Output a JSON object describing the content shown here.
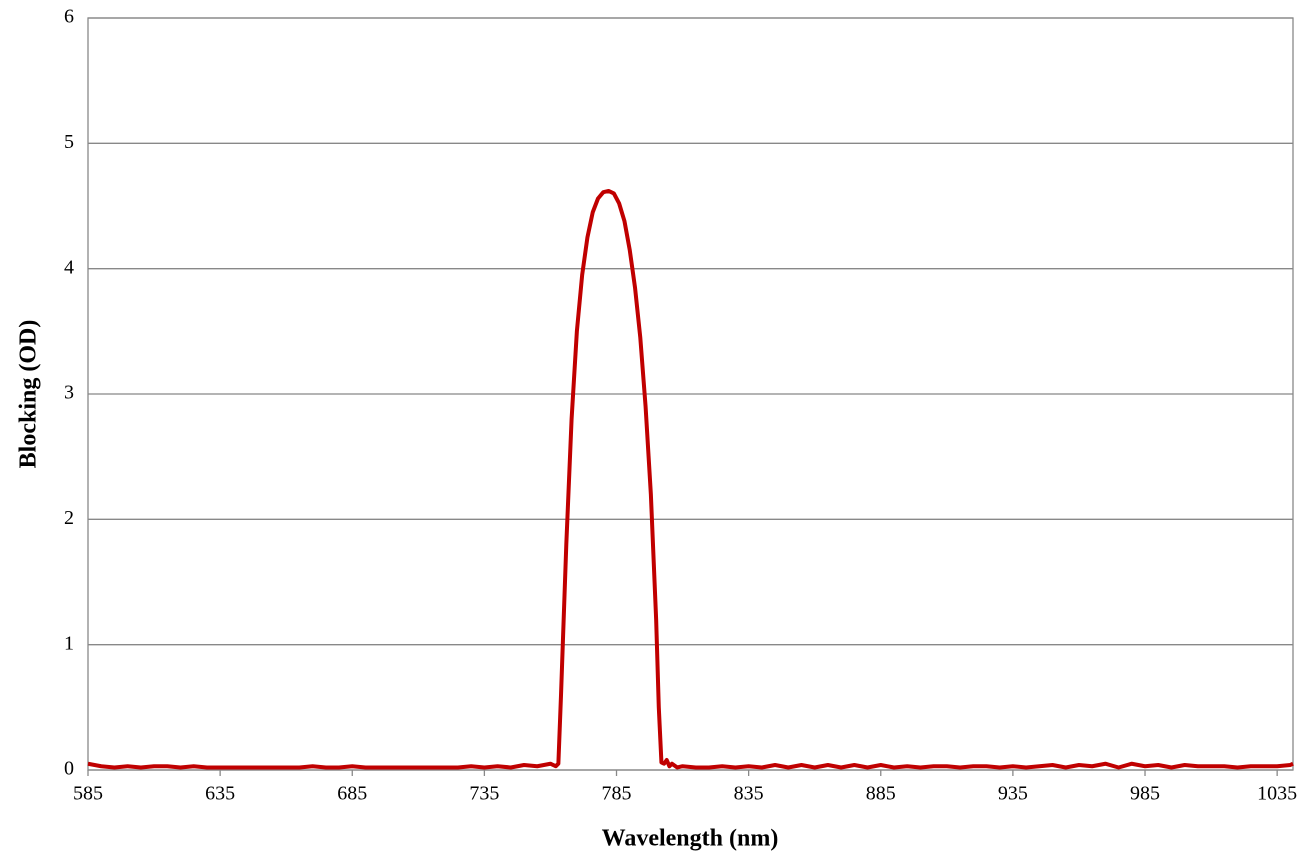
{
  "chart_data": {
    "type": "line",
    "xlabel": "Wavelength (nm)",
    "ylabel": "Blocking (OD)",
    "x": [
      585,
      590,
      595,
      600,
      605,
      610,
      615,
      620,
      625,
      630,
      635,
      640,
      645,
      650,
      655,
      660,
      665,
      670,
      675,
      680,
      685,
      690,
      695,
      700,
      705,
      710,
      715,
      720,
      725,
      730,
      735,
      740,
      745,
      750,
      755,
      760,
      762,
      763,
      764,
      765,
      766,
      768,
      770,
      772,
      774,
      776,
      778,
      780,
      782,
      784,
      786,
      788,
      790,
      792,
      794,
      796,
      798,
      800,
      801,
      802,
      803,
      804,
      805,
      806,
      808,
      810,
      815,
      820,
      825,
      830,
      835,
      840,
      845,
      850,
      855,
      860,
      865,
      870,
      875,
      880,
      885,
      890,
      895,
      900,
      905,
      910,
      915,
      920,
      925,
      930,
      935,
      940,
      945,
      950,
      955,
      960,
      965,
      970,
      975,
      980,
      985,
      990,
      995,
      1000,
      1005,
      1010,
      1015,
      1020,
      1025,
      1030,
      1035,
      1040,
      1041
    ],
    "values": [
      0.05,
      0.03,
      0.02,
      0.03,
      0.02,
      0.03,
      0.03,
      0.02,
      0.03,
      0.02,
      0.02,
      0.02,
      0.02,
      0.02,
      0.02,
      0.02,
      0.02,
      0.03,
      0.02,
      0.02,
      0.03,
      0.02,
      0.02,
      0.02,
      0.02,
      0.02,
      0.02,
      0.02,
      0.02,
      0.03,
      0.02,
      0.03,
      0.02,
      0.04,
      0.03,
      0.05,
      0.03,
      0.05,
      0.6,
      1.2,
      1.8,
      2.8,
      3.5,
      3.95,
      4.25,
      4.45,
      4.56,
      4.61,
      4.62,
      4.6,
      4.52,
      4.38,
      4.15,
      3.85,
      3.45,
      2.9,
      2.2,
      1.2,
      0.5,
      0.06,
      0.05,
      0.08,
      0.03,
      0.05,
      0.02,
      0.03,
      0.02,
      0.02,
      0.03,
      0.02,
      0.03,
      0.02,
      0.04,
      0.02,
      0.04,
      0.02,
      0.04,
      0.02,
      0.04,
      0.02,
      0.04,
      0.02,
      0.03,
      0.02,
      0.03,
      0.03,
      0.02,
      0.03,
      0.03,
      0.02,
      0.03,
      0.02,
      0.03,
      0.04,
      0.02,
      0.04,
      0.03,
      0.05,
      0.02,
      0.05,
      0.03,
      0.04,
      0.02,
      0.04,
      0.03,
      0.03,
      0.03,
      0.02,
      0.03,
      0.03,
      0.03,
      0.04,
      0.05
    ],
    "color": "#c00000",
    "xlim": [
      585,
      1041
    ],
    "xticks": [
      585,
      635,
      685,
      735,
      785,
      835,
      885,
      935,
      985,
      1035
    ],
    "ylim": [
      0,
      6
    ],
    "yticks": [
      0,
      1,
      2,
      3,
      4,
      5,
      6
    ],
    "grid": true
  }
}
